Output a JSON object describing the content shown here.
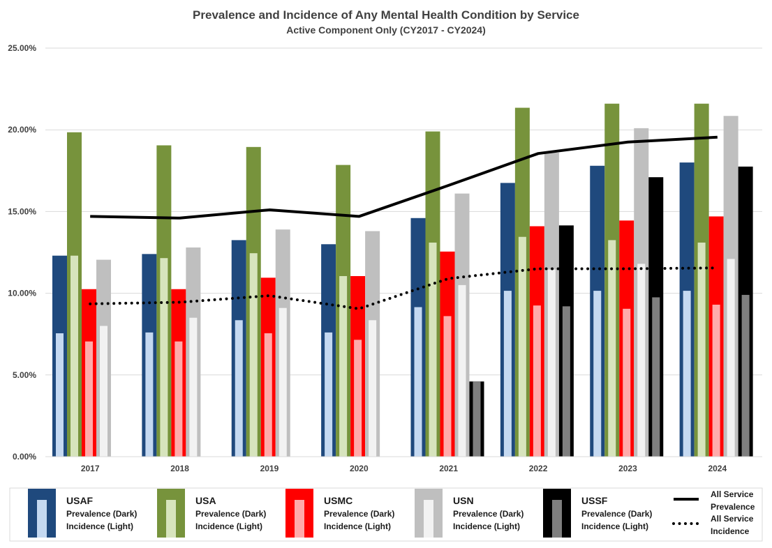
{
  "chart_data": {
    "type": "bar",
    "title": "Prevalence and Incidence of Any Mental Health Condition by Service",
    "subtitle": "Active Component Only (CY2017 - CY2024)",
    "categories": [
      "2017",
      "2018",
      "2019",
      "2020",
      "2021",
      "2022",
      "2023",
      "2024"
    ],
    "ylim": [
      0,
      25
    ],
    "y_ticks": [
      "0.00%",
      "5.00%",
      "10.00%",
      "15.00%",
      "20.00%",
      "25.00%"
    ],
    "grid": true,
    "legend_position": "bottom",
    "series": [
      {
        "name": "USAF",
        "prevalence_label": "Prevalence (Dark)",
        "incidence_label": "Incidence (Light)",
        "dark_color": "#1f497d",
        "light_color": "#c5d9f1",
        "prevalence": [
          12.3,
          12.4,
          13.25,
          13.0,
          14.6,
          16.75,
          17.8,
          18.0
        ],
        "incidence": [
          7.55,
          7.6,
          8.35,
          7.6,
          9.15,
          10.15,
          10.15,
          10.15
        ]
      },
      {
        "name": "USA",
        "prevalence_label": "Prevalence (Dark)",
        "incidence_label": "Incidence (Light)",
        "dark_color": "#77933c",
        "light_color": "#d7e4bd",
        "prevalence": [
          19.85,
          19.05,
          18.95,
          17.85,
          19.9,
          21.35,
          21.6,
          21.6
        ],
        "incidence": [
          12.3,
          12.15,
          12.45,
          11.05,
          13.1,
          13.45,
          13.25,
          13.1
        ]
      },
      {
        "name": "USMC",
        "prevalence_label": "Prevalence (Dark)",
        "incidence_label": "Incidence (Light)",
        "dark_color": "#ff0000",
        "light_color": "#ffaaaa",
        "prevalence": [
          10.25,
          10.25,
          10.95,
          11.05,
          12.55,
          14.1,
          14.45,
          14.7
        ],
        "incidence": [
          7.05,
          7.05,
          7.55,
          7.15,
          8.6,
          9.25,
          9.05,
          9.3
        ]
      },
      {
        "name": "USN",
        "prevalence_label": "Prevalence (Dark)",
        "incidence_label": "Incidence (Light)",
        "dark_color": "#bfbfbf",
        "light_color": "#f2f2f2",
        "prevalence": [
          12.05,
          12.8,
          13.9,
          13.8,
          16.1,
          18.6,
          20.1,
          20.85
        ],
        "incidence": [
          8.0,
          8.5,
          9.1,
          8.35,
          10.5,
          11.45,
          11.8,
          12.1
        ]
      },
      {
        "name": "USSF",
        "prevalence_label": "Prevalence (Dark)",
        "incidence_label": "Incidence (Light)",
        "dark_color": "#000000",
        "light_color": "#7f7f7f",
        "prevalence": [
          null,
          null,
          null,
          null,
          4.6,
          14.15,
          17.1,
          17.75
        ],
        "incidence": [
          null,
          null,
          null,
          null,
          4.6,
          9.2,
          9.75,
          9.9
        ]
      }
    ],
    "lines": [
      {
        "name": "All Service Prevalence",
        "name_lines": [
          "All Service",
          "Prevalence"
        ],
        "style": "solid",
        "values": [
          14.7,
          14.6,
          15.1,
          14.7,
          16.6,
          18.55,
          19.25,
          19.55
        ]
      },
      {
        "name": "All Service Incidence",
        "name_lines": [
          "All Service",
          "Incidence"
        ],
        "style": "dotted",
        "values": [
          9.35,
          9.45,
          9.85,
          9.05,
          10.9,
          11.5,
          11.5,
          11.55
        ]
      }
    ]
  }
}
